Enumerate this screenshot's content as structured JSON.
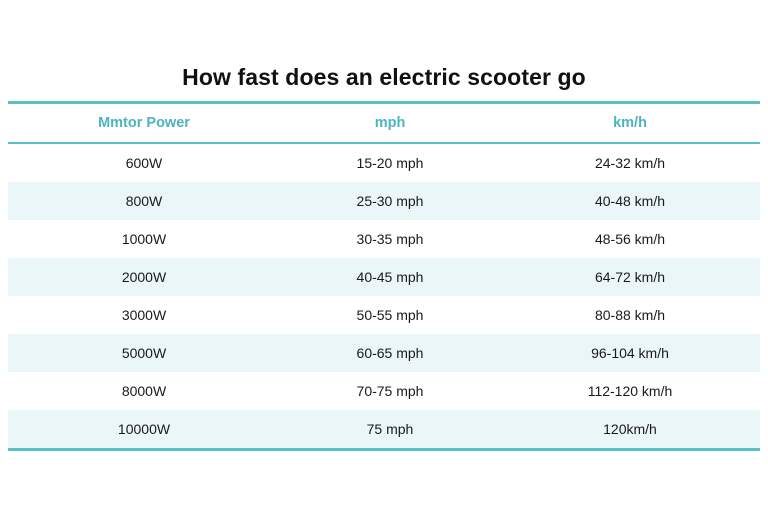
{
  "title": "How fast does an electric scooter go",
  "table": {
    "headers": [
      "Mmtor Power",
      "mph",
      "km/h"
    ],
    "rows": [
      [
        "600W",
        "15-20 mph",
        "24-32 km/h"
      ],
      [
        "800W",
        "25-30 mph",
        "40-48 km/h"
      ],
      [
        "1000W",
        "30-35 mph",
        "48-56 km/h"
      ],
      [
        "2000W",
        "40-45 mph",
        "64-72 km/h"
      ],
      [
        "3000W",
        "50-55 mph",
        "80-88 km/h"
      ],
      [
        "5000W",
        "60-65 mph",
        "96-104 km/h"
      ],
      [
        "8000W",
        "70-75 mph",
        "112-120 km/h"
      ],
      [
        "10000W",
        "75 mph",
        "120km/h"
      ]
    ]
  },
  "colors": {
    "accent": "#58bfc9",
    "header_text": "#4cb4c0",
    "row_stripe": "#eaf6f7"
  }
}
